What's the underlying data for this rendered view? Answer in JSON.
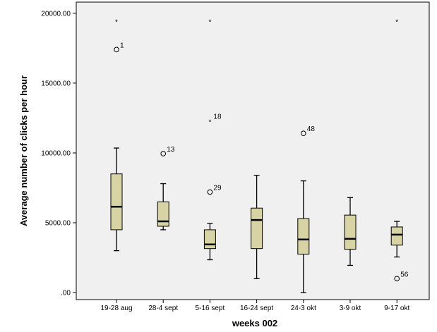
{
  "chart_data": {
    "type": "boxplot",
    "xlabel": "weeks 002",
    "ylabel": "Average number of clicks per hour",
    "ylim": [
      -500,
      20800
    ],
    "yticks": [
      0,
      5000,
      10000,
      15000,
      20000
    ],
    "ytick_labels": [
      ".00",
      "5000.00",
      "10000.00",
      "15000.00",
      "20000.00"
    ],
    "grid": false,
    "colors": {
      "plot_background": "#f0f0f0",
      "box_fill": "#d8d3a4",
      "box_stroke": "#000000",
      "median": "#000000"
    },
    "categories": [
      "19-28 aug",
      "28-4 sept",
      "5-16 sept",
      "16-24 sept",
      "24-3 okt",
      "3-9 okt",
      "9-17 okt"
    ],
    "boxes": [
      {
        "category": "19-28 aug",
        "whisker_low": 3000,
        "q1": 4500,
        "median": 6150,
        "q3": 8500,
        "whisker_high": 10350
      },
      {
        "category": "28-4 sept",
        "whisker_low": 4500,
        "q1": 4750,
        "median": 5100,
        "q3": 6500,
        "whisker_high": 7800
      },
      {
        "category": "5-16 sept",
        "whisker_low": 2350,
        "q1": 3150,
        "median": 3450,
        "q3": 4500,
        "whisker_high": 4950
      },
      {
        "category": "16-24 sept",
        "whisker_low": 1000,
        "q1": 3150,
        "median": 5200,
        "q3": 6050,
        "whisker_high": 8400
      },
      {
        "category": "24-3 okt",
        "whisker_low": 0,
        "q1": 2750,
        "median": 3800,
        "q3": 5300,
        "whisker_high": 8000
      },
      {
        "category": "3-9 okt",
        "whisker_low": 1950,
        "q1": 3100,
        "median": 3850,
        "q3": 5550,
        "whisker_high": 6800
      },
      {
        "category": "9-17 okt",
        "whisker_low": 2550,
        "q1": 3400,
        "median": 4150,
        "q3": 4700,
        "whisker_high": 5100
      }
    ],
    "outliers": [
      {
        "category": "19-28 aug",
        "value": 17400,
        "marker": "circle",
        "label": "1"
      },
      {
        "category": "19-28 aug",
        "value": 19450,
        "marker": "star",
        "label": ""
      },
      {
        "category": "28-4 sept",
        "value": 9950,
        "marker": "circle",
        "label": "13"
      },
      {
        "category": "5-16 sept",
        "value": 7200,
        "marker": "circle",
        "label": "29"
      },
      {
        "category": "5-16 sept",
        "value": 12300,
        "marker": "star",
        "label": "18"
      },
      {
        "category": "5-16 sept",
        "value": 19450,
        "marker": "star",
        "label": ""
      },
      {
        "category": "24-3 okt",
        "value": 11400,
        "marker": "circle",
        "label": "48"
      },
      {
        "category": "9-17 okt",
        "value": 1000,
        "marker": "circle",
        "label": "56"
      },
      {
        "category": "9-17 okt",
        "value": 19450,
        "marker": "star",
        "label": ""
      }
    ]
  }
}
